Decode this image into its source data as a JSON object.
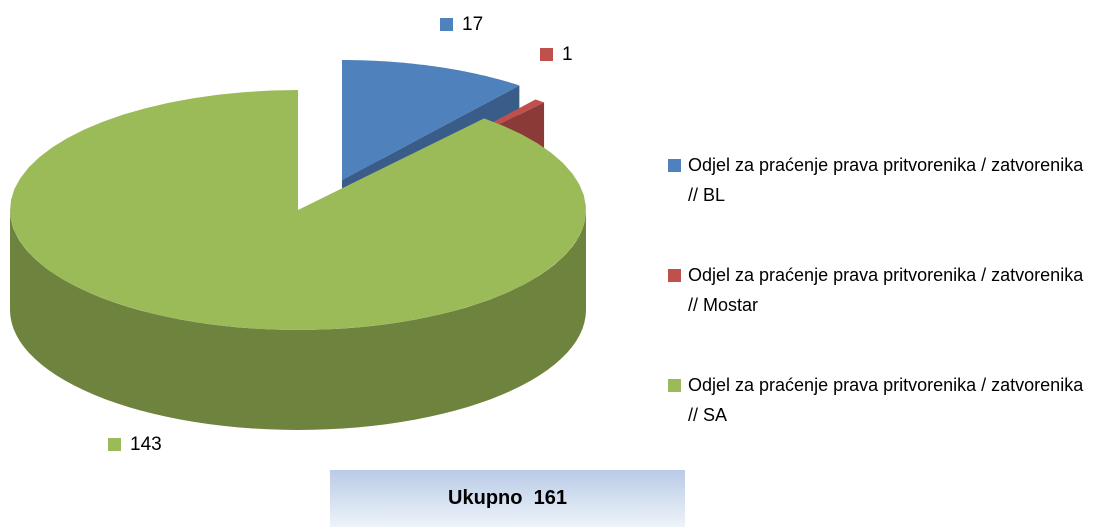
{
  "chart_data": {
    "type": "pie",
    "style": "3d",
    "categories": [
      "Odjel za praćenje prava pritvorenika / zatvorenika // BL",
      "Odjel za praćenje prava pritvorenika / zatvorenika // Mostar",
      "Odjel za praćenje prava pritvorenika / zatvorenika // SA"
    ],
    "values": [
      17,
      1,
      143
    ],
    "colors": [
      "#4f81bd",
      "#c0504d",
      "#9bbb59"
    ],
    "legend": "right",
    "total_label": "Ukupno  161"
  }
}
